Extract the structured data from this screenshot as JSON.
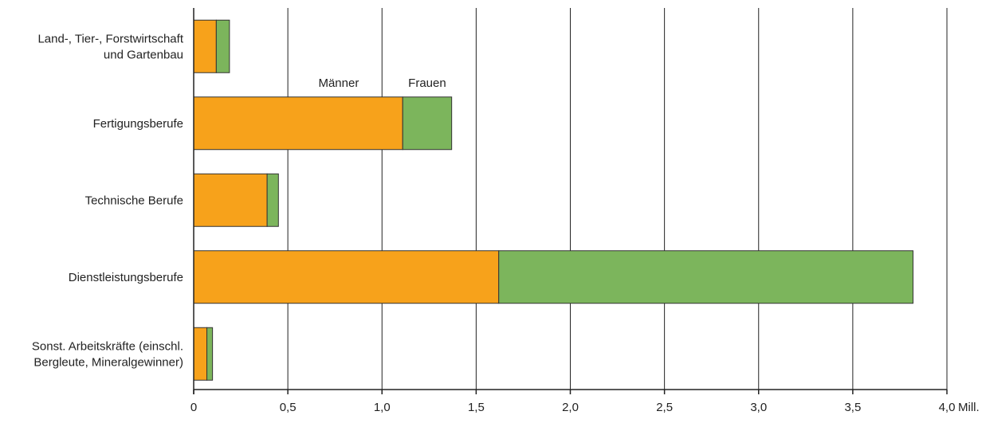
{
  "chart_data": {
    "type": "bar",
    "orientation": "horizontal",
    "stacked": true,
    "categories": [
      [
        "Land-, Tier-, Forstwirtschaft",
        "und Gartenbau"
      ],
      [
        "Fertigungsberufe"
      ],
      [
        "Technische Berufe"
      ],
      [
        "Dienstleistungsberufe"
      ],
      [
        "Sonst. Arbeitskräfte (einschl.",
        "Bergleute, Mineralgewinner)"
      ]
    ],
    "series": [
      {
        "name": "Männer",
        "color": "#f7a21b",
        "values": [
          0.12,
          1.11,
          0.39,
          1.62,
          0.07
        ]
      },
      {
        "name": "Frauen",
        "color": "#7cb55c",
        "values": [
          0.07,
          0.26,
          0.06,
          2.2,
          0.03
        ]
      }
    ],
    "xlim": [
      0,
      4.0
    ],
    "x_ticks": [
      0,
      0.5,
      1.0,
      1.5,
      2.0,
      2.5,
      3.0,
      3.5,
      4.0
    ],
    "x_tick_labels": [
      "0",
      "0,5",
      "1,0",
      "1,5",
      "2,0",
      "2,5",
      "3,0",
      "3,5",
      "4,0"
    ],
    "x_unit": "Mill.",
    "grid": "vertical",
    "legend_placement": "labels above Fertigungsberufe bar",
    "bar_outline_color": "#333333",
    "axis_color": "#222222"
  }
}
